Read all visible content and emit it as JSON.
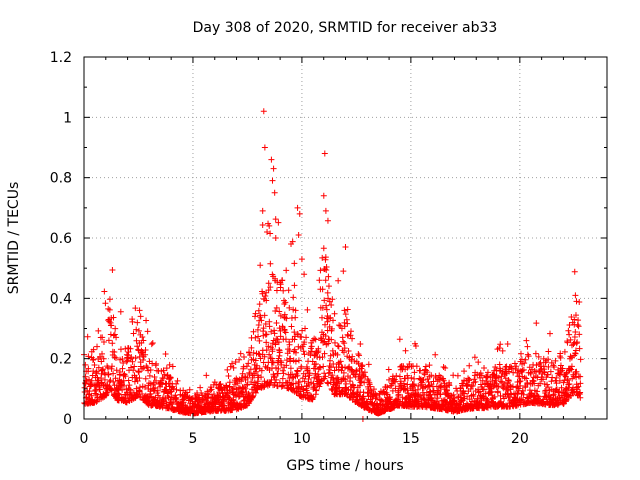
{
  "chart_data": {
    "type": "scatter",
    "title": "Day 308 of 2020, SRMTID for receiver ab33",
    "xlabel": "GPS time / hours",
    "ylabel": "SRMTID / TECUs",
    "xlim": [
      0,
      24
    ],
    "ylim": [
      0,
      1.2
    ],
    "xticks": [
      "0",
      "5",
      "10",
      "15",
      "20"
    ],
    "yticks": [
      "0",
      "0.2",
      "0.4",
      "0.6",
      "0.8",
      "1",
      "1.2"
    ],
    "grid": true,
    "marker": "+",
    "color": "#ff0000",
    "series": [
      {
        "name": "SRMTID",
        "profile": [
          [
            0.0,
            0.11
          ],
          [
            0.5,
            0.12
          ],
          [
            1.0,
            0.17
          ],
          [
            1.2,
            0.22
          ],
          [
            1.5,
            0.14
          ],
          [
            2.0,
            0.12
          ],
          [
            2.5,
            0.17
          ],
          [
            3.0,
            0.1
          ],
          [
            3.5,
            0.09
          ],
          [
            4.0,
            0.07
          ],
          [
            4.5,
            0.05
          ],
          [
            5.0,
            0.04
          ],
          [
            5.5,
            0.05
          ],
          [
            6.0,
            0.06
          ],
          [
            6.5,
            0.06
          ],
          [
            7.0,
            0.07
          ],
          [
            7.5,
            0.1
          ],
          [
            8.0,
            0.22
          ],
          [
            8.5,
            0.25
          ],
          [
            9.0,
            0.24
          ],
          [
            9.5,
            0.22
          ],
          [
            10.0,
            0.16
          ],
          [
            10.5,
            0.14
          ],
          [
            11.0,
            0.3
          ],
          [
            11.5,
            0.18
          ],
          [
            12.0,
            0.18
          ],
          [
            12.5,
            0.12
          ],
          [
            13.0,
            0.07
          ],
          [
            13.5,
            0.04
          ],
          [
            14.0,
            0.07
          ],
          [
            14.5,
            0.1
          ],
          [
            15.0,
            0.09
          ],
          [
            15.5,
            0.09
          ],
          [
            16.0,
            0.08
          ],
          [
            16.5,
            0.07
          ],
          [
            17.0,
            0.05
          ],
          [
            17.5,
            0.07
          ],
          [
            18.0,
            0.08
          ],
          [
            18.5,
            0.08
          ],
          [
            19.0,
            0.09
          ],
          [
            19.5,
            0.09
          ],
          [
            20.0,
            0.1
          ],
          [
            20.5,
            0.12
          ],
          [
            21.0,
            0.11
          ],
          [
            21.5,
            0.1
          ],
          [
            22.0,
            0.11
          ],
          [
            22.5,
            0.2
          ],
          [
            22.8,
            0.15
          ]
        ],
        "spikes": [
          [
            8.25,
            1.02
          ],
          [
            8.3,
            0.9
          ],
          [
            8.6,
            0.86
          ],
          [
            8.7,
            0.83
          ],
          [
            8.65,
            0.79
          ],
          [
            8.75,
            0.75
          ],
          [
            8.2,
            0.69
          ],
          [
            8.5,
            0.64
          ],
          [
            8.4,
            0.62
          ],
          [
            8.8,
            0.6
          ],
          [
            9.1,
            0.46
          ],
          [
            9.5,
            0.58
          ],
          [
            9.8,
            0.7
          ],
          [
            9.9,
            0.68
          ],
          [
            9.85,
            0.61
          ],
          [
            10.0,
            0.53
          ],
          [
            10.1,
            0.48
          ],
          [
            10.8,
            0.46
          ],
          [
            10.95,
            0.43
          ],
          [
            11.05,
            0.88
          ],
          [
            11.1,
            0.69
          ],
          [
            11.2,
            0.4
          ],
          [
            11.9,
            0.49
          ],
          [
            12.0,
            0.57
          ],
          [
            11.95,
            0.36
          ],
          [
            1.15,
            0.33
          ],
          [
            1.25,
            0.31
          ],
          [
            2.55,
            0.36
          ],
          [
            2.6,
            0.34
          ],
          [
            22.55,
            0.41
          ],
          [
            22.6,
            0.39
          ],
          [
            22.5,
            0.33
          ],
          [
            20.3,
            0.26
          ],
          [
            20.35,
            0.24
          ],
          [
            12.8,
            0.0
          ]
        ]
      }
    ]
  }
}
